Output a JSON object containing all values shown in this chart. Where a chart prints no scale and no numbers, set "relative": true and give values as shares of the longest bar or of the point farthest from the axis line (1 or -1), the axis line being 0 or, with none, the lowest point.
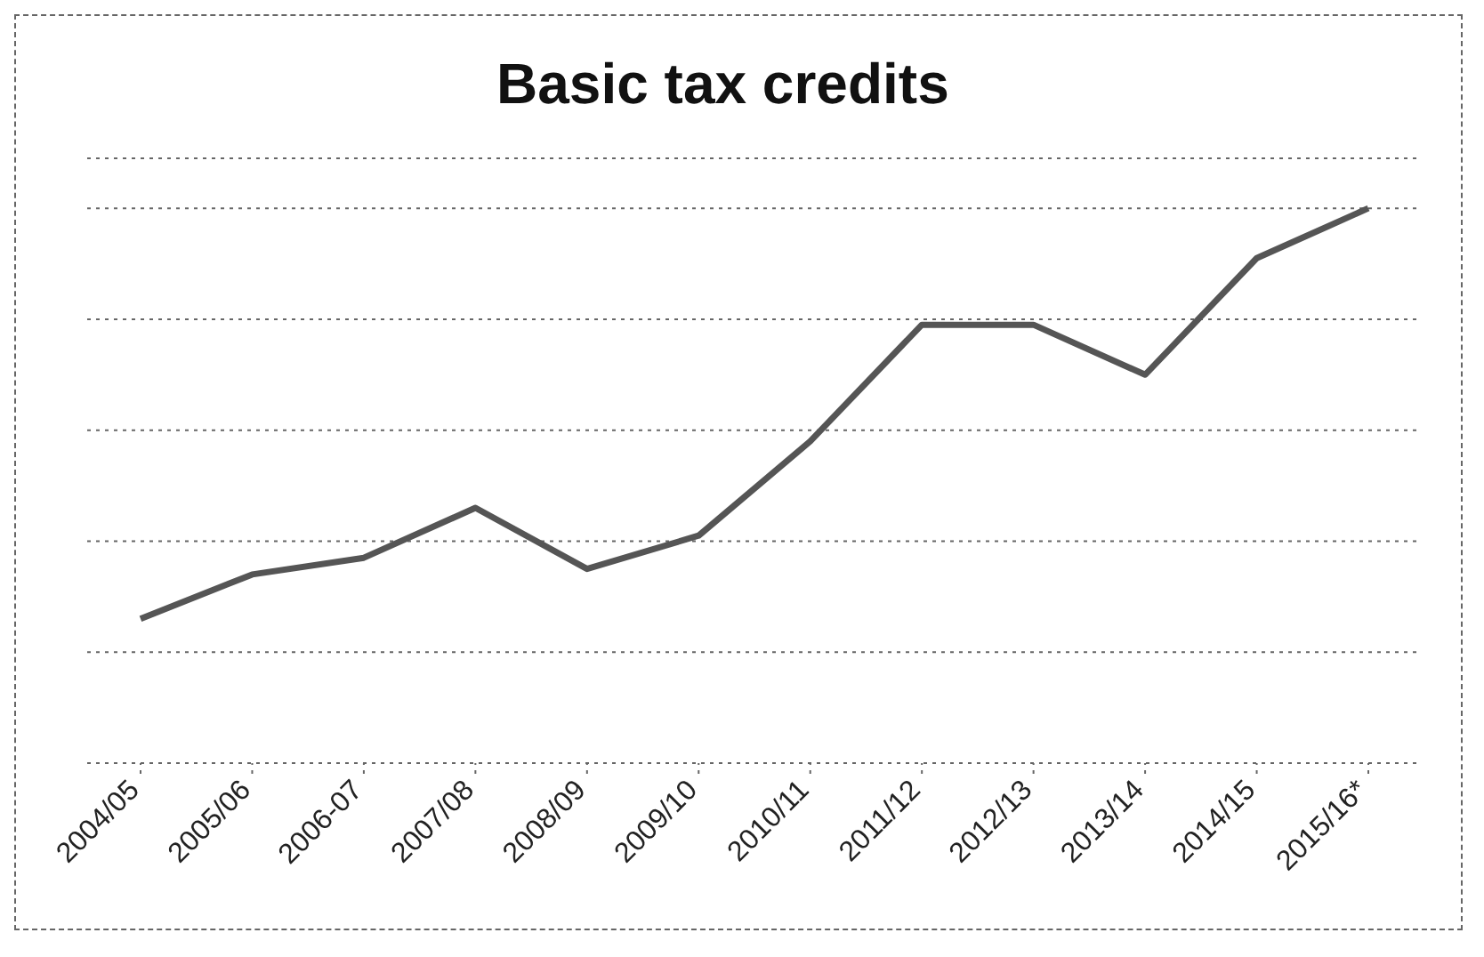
{
  "chart_data": {
    "type": "line",
    "title": "Basic tax credits",
    "categories": [
      "2004/05",
      "2005/06",
      "2006-07",
      "2007/08",
      "2008/09",
      "2009/10",
      "2010/11",
      "2011/12",
      "2012/13",
      "2013/14",
      "2014/15",
      "2015/16*"
    ],
    "series": [
      {
        "color": "#555555",
        "values": [
          0.26,
          0.34,
          0.37,
          0.46,
          0.35,
          0.41,
          0.58,
          0.79,
          0.79,
          0.7,
          0.91,
          1.0
        ]
      }
    ],
    "relative": true,
    "grid": "y",
    "legend": false,
    "marker": "none",
    "line_style": "solid"
  }
}
